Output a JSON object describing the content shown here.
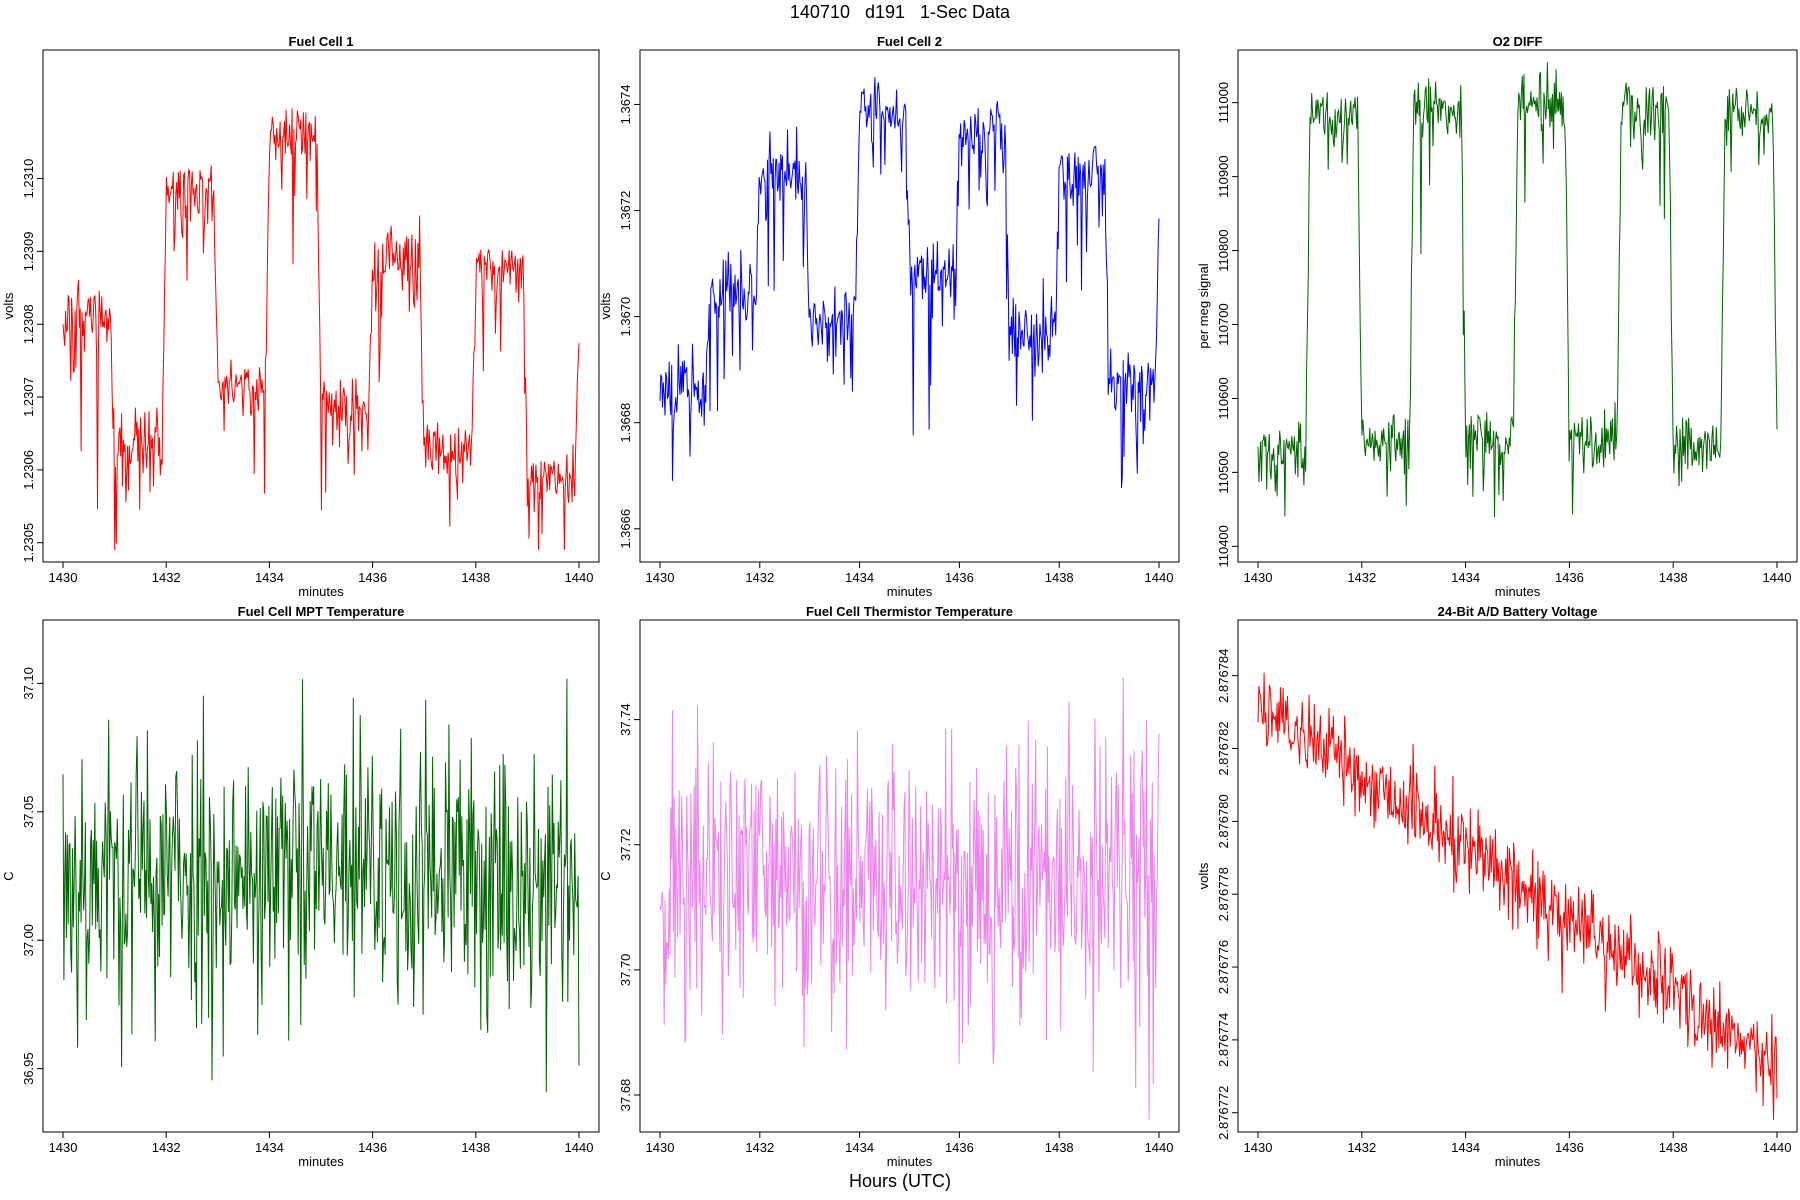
{
  "figure": {
    "title": "140710   d191   1-Sec Data",
    "xlabel": "Hours (UTC)"
  },
  "chart_data": [
    {
      "type": "line",
      "title": "Fuel Cell 1",
      "xlabel": "minutes",
      "ylabel": "volts",
      "color": "#ff0000",
      "xlim": [
        1430,
        1440
      ],
      "ylim": [
        1.23049,
        1.23116
      ],
      "xticks": [
        1430,
        1432,
        1434,
        1436,
        1438,
        1440
      ],
      "yticks": [
        1.2305,
        1.2306,
        1.2307,
        1.2308,
        1.2309,
        1.231
      ],
      "ytick_labels": [
        "1.2305",
        "1.2306",
        "1.2307",
        "1.2308",
        "1.2309",
        "1.2310"
      ],
      "profile": "square",
      "levels": [
        1.23082,
        1.23064,
        1.23098,
        1.23072,
        1.23106,
        1.23069,
        1.23089,
        1.23063,
        1.23088,
        1.23059,
        1.23082
      ],
      "noise": 3.5e-05,
      "seed": 11
    },
    {
      "type": "line",
      "title": "Fuel Cell 2",
      "xlabel": "minutes",
      "ylabel": "volts",
      "color": "#0000ff",
      "xlim": [
        1430,
        1440
      ],
      "ylim": [
        1.36656,
        1.36748
      ],
      "xticks": [
        1430,
        1432,
        1434,
        1436,
        1438,
        1440
      ],
      "yticks": [
        1.3666,
        1.3668,
        1.367,
        1.3672,
        1.3674
      ],
      "ytick_labels": [
        "1.3666",
        "1.3668",
        "1.3670",
        "1.3672",
        "1.3674"
      ],
      "profile": "square",
      "levels": [
        1.36688,
        1.36705,
        1.36728,
        1.367,
        1.36738,
        1.36709,
        1.36735,
        1.36697,
        1.36728,
        1.36687,
        1.36718
      ],
      "noise": 5e-05,
      "seed": 23
    },
    {
      "type": "line",
      "title": "O2 DIFF",
      "xlabel": "minutes",
      "ylabel": "per meg signal",
      "color": "#006400",
      "xlim": [
        1430,
        1440
      ],
      "ylim": [
        110395,
        111055
      ],
      "xticks": [
        1430,
        1432,
        1434,
        1436,
        1438,
        1440
      ],
      "yticks": [
        110400,
        110500,
        110600,
        110700,
        110800,
        110900,
        111000
      ],
      "ytick_labels": [
        "110400",
        "110500",
        "110600",
        "110700",
        "110800",
        "110900",
        "111000"
      ],
      "profile": "square",
      "levels": [
        110525,
        110985,
        110540,
        110995,
        110550,
        111000,
        110545,
        110995,
        110540,
        110990,
        110545
      ],
      "noise": 30,
      "seed": 37
    },
    {
      "type": "line",
      "title": "Fuel Cell MPT Temperature",
      "xlabel": "minutes",
      "ylabel": "C",
      "color": "#006400",
      "xlim": [
        1430,
        1440
      ],
      "ylim": [
        36.93,
        37.12
      ],
      "xticks": [
        1430,
        1432,
        1434,
        1436,
        1438,
        1440
      ],
      "yticks": [
        36.95,
        37.0,
        37.05,
        37.1
      ],
      "ytick_labels": [
        "36.95",
        "37.00",
        "37.05",
        "37.10"
      ],
      "profile": "noise",
      "mean": 37.025,
      "noise": 0.028,
      "seed": 53
    },
    {
      "type": "line",
      "title": "Fuel Cell Thermistor Temperature",
      "xlabel": "minutes",
      "ylabel": "C",
      "color": "#ee82ee",
      "xlim": [
        1430,
        1440
      ],
      "ylim": [
        37.676,
        37.754
      ],
      "xticks": [
        1430,
        1432,
        1434,
        1436,
        1438,
        1440
      ],
      "yticks": [
        37.68,
        37.7,
        37.72,
        37.74
      ],
      "ytick_labels": [
        "37.68",
        "37.70",
        "37.72",
        "37.74"
      ],
      "profile": "noise",
      "mean": 37.714,
      "noise": 0.012,
      "seed": 71
    },
    {
      "type": "line",
      "title": "24-Bit A/D Battery Voltage",
      "xlabel": "minutes",
      "ylabel": "volts",
      "color": "#ff0000",
      "xlim": [
        1430,
        1440
      ],
      "ylim": [
        2.8767718,
        2.8767852
      ],
      "xticks": [
        1430,
        1432,
        1434,
        1436,
        1438,
        1440
      ],
      "yticks": [
        2.876772,
        2.876774,
        2.876776,
        2.876778,
        2.87678,
        2.876782,
        2.876784
      ],
      "ytick_labels": [
        "2.876772",
        "2.876774",
        "2.876776",
        "2.876778",
        "2.876780",
        "2.876782",
        "2.876784"
      ],
      "profile": "trend",
      "start": 2.8767833,
      "end": 2.8767733,
      "noise": 6e-07,
      "seed": 89
    }
  ]
}
